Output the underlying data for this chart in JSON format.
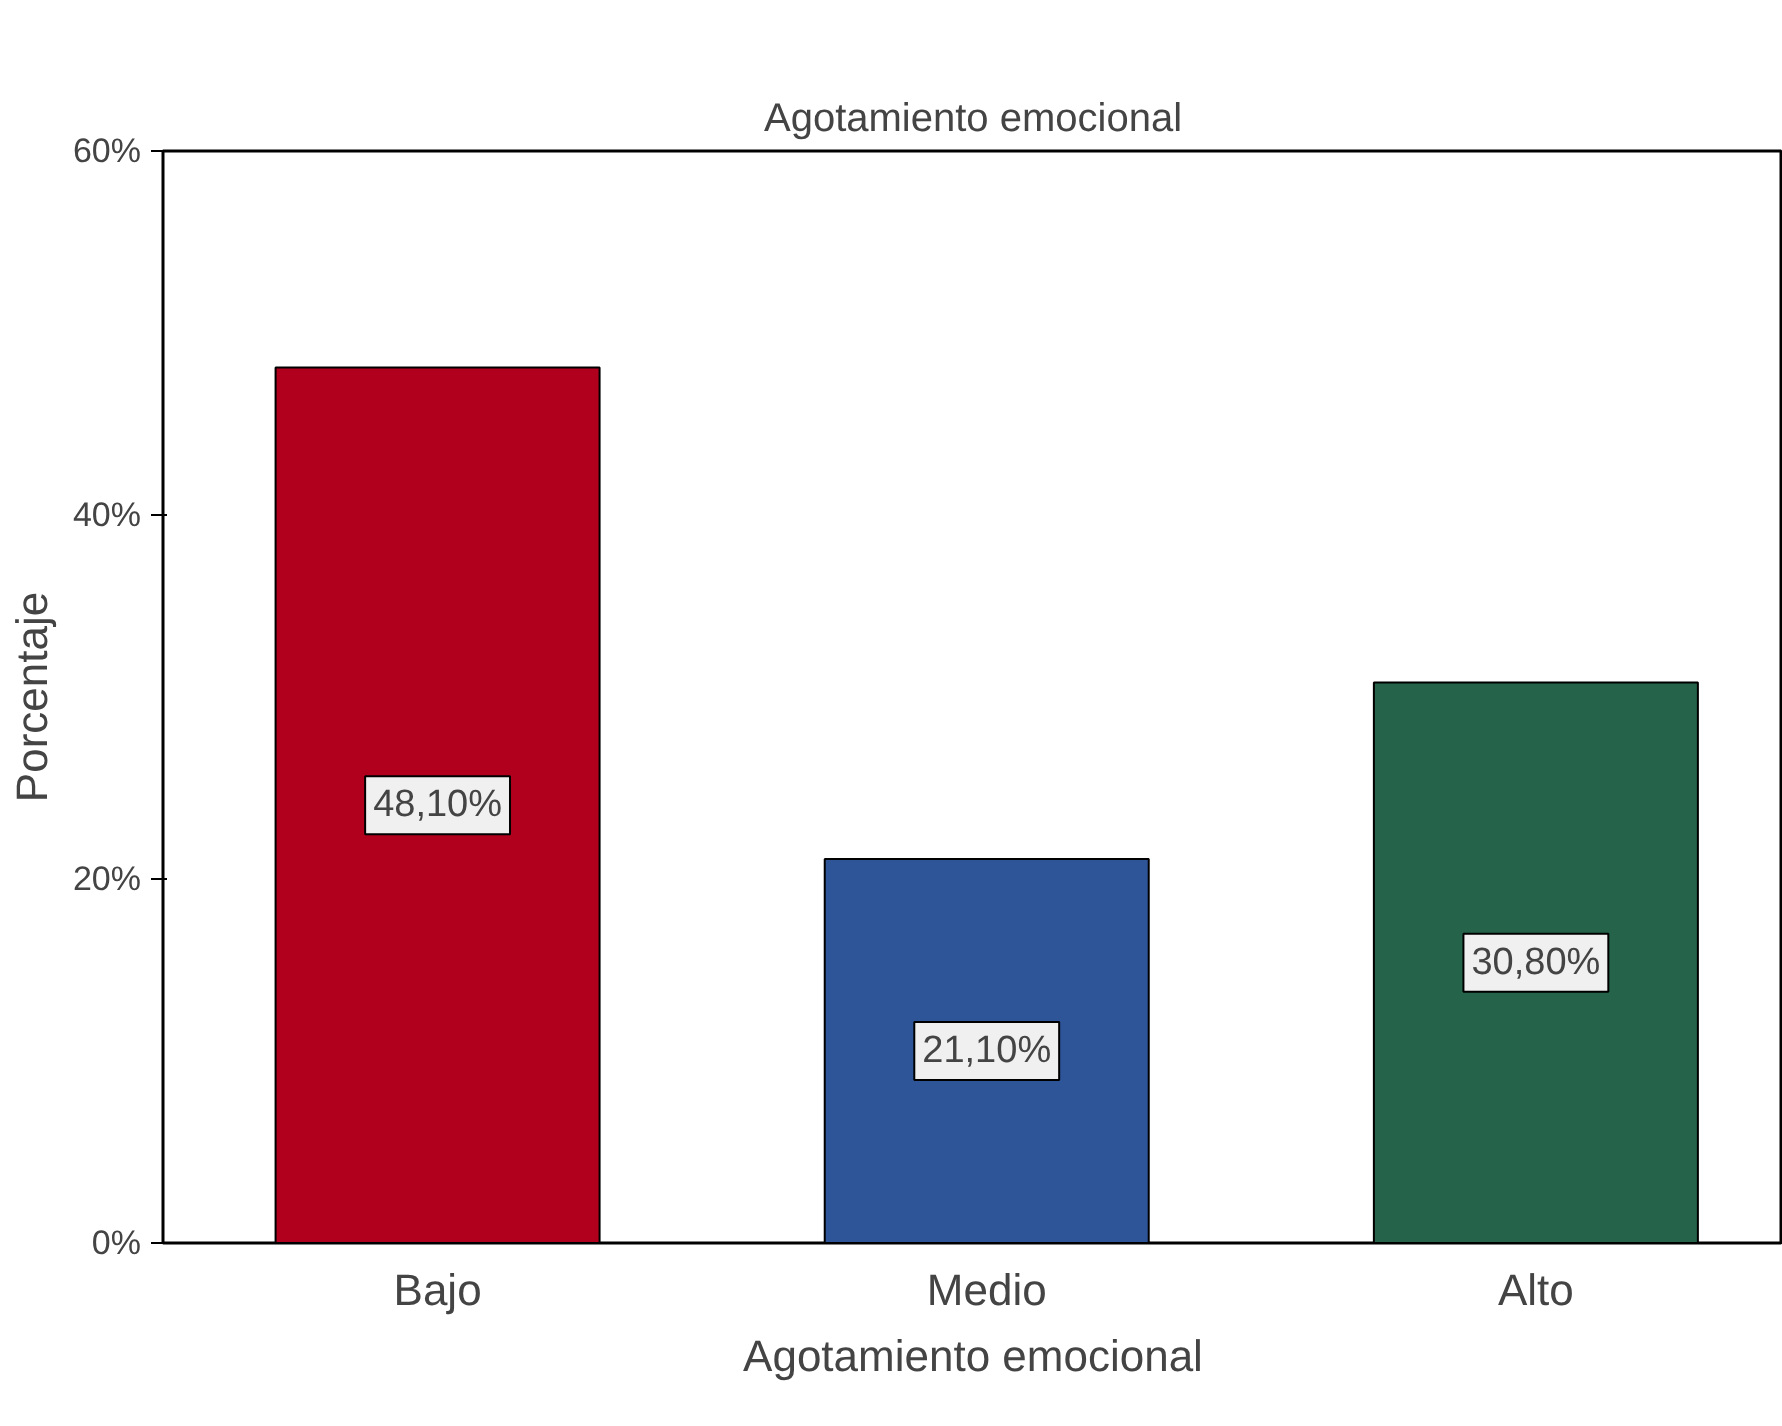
{
  "chart_data": {
    "type": "bar",
    "title": "Agotamiento emocional",
    "xlabel": "Agotamiento emocional",
    "ylabel": "Porcentaje",
    "categories": [
      "Bajo",
      "Medio",
      "Alto"
    ],
    "values": [
      48.1,
      21.1,
      30.8
    ],
    "colors": [
      "#b0001e",
      "#2d5597",
      "#25634a"
    ],
    "value_labels": [
      "48,10%",
      "21,10%",
      "30,80%"
    ],
    "ylim": [
      0,
      60
    ],
    "yticks": [
      {
        "value": 0,
        "label": "0%"
      },
      {
        "value": 20,
        "label": "20%"
      },
      {
        "value": 40,
        "label": "40%"
      },
      {
        "value": 60,
        "label": "60%"
      }
    ],
    "grid": false
  }
}
